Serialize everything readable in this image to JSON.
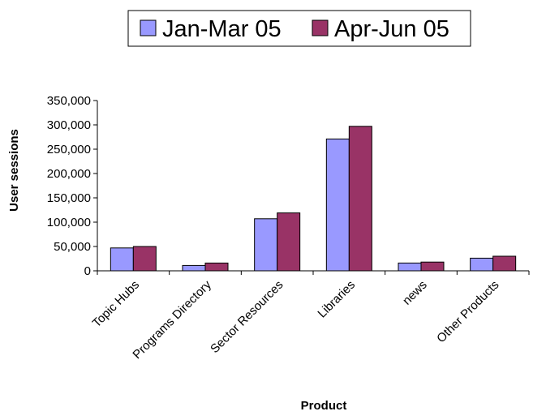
{
  "chart_data": {
    "type": "bar",
    "title": "",
    "xlabel": "Product",
    "ylabel": "User sessions",
    "categories": [
      "Topic Hubs",
      "Programs Directory",
      "Sector Resources",
      "Libraries",
      "news",
      "Other Products"
    ],
    "series": [
      {
        "name": "Jan-Mar 05",
        "color": "#9999ff",
        "values": [
          47000,
          11000,
          107000,
          271000,
          16000,
          26000
        ]
      },
      {
        "name": "Apr-Jun 05",
        "color": "#993366",
        "values": [
          50000,
          16000,
          119000,
          297000,
          18000,
          30000
        ]
      }
    ],
    "ylim": [
      0,
      350000
    ],
    "yticks": [
      0,
      50000,
      100000,
      150000,
      200000,
      250000,
      300000,
      350000
    ],
    "ytick_labels": [
      "0",
      "50,000",
      "100,000",
      "150,000",
      "200,000",
      "250,000",
      "300,000",
      "350,000"
    ],
    "grid": false,
    "legend_position": "top"
  }
}
